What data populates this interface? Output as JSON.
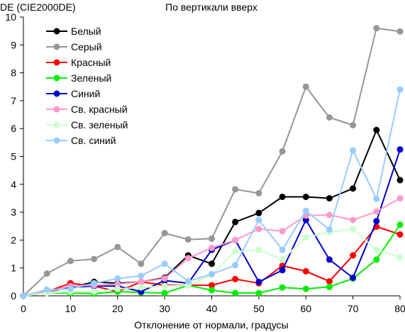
{
  "chart_data": {
    "type": "line",
    "title": "По вертикали вверх",
    "ylabel": "DE (CIE2000DE)",
    "xlabel": "Отклонение от нормали, градусы",
    "xlim": [
      0,
      80
    ],
    "ylim": [
      0,
      10
    ],
    "xticks": [
      0,
      10,
      20,
      30,
      40,
      50,
      60,
      70,
      80
    ],
    "yticks": [
      0,
      1,
      2,
      3,
      4,
      5,
      6,
      7,
      8,
      9,
      10
    ],
    "grid": false,
    "legend_position": "top-left",
    "x": [
      0,
      5,
      10,
      15,
      20,
      25,
      30,
      35,
      40,
      45,
      50,
      55,
      60,
      65,
      70,
      75,
      80
    ],
    "series": [
      {
        "name": "Белый",
        "color": "#000000",
        "values": [
          0,
          0.15,
          0.3,
          0.5,
          0.45,
          0.5,
          0.65,
          1.45,
          1.15,
          2.65,
          2.97,
          3.55,
          3.55,
          3.5,
          3.85,
          5.95,
          4.15
        ]
      },
      {
        "name": "Серый",
        "color": "#969696",
        "values": [
          0,
          0.8,
          1.25,
          1.32,
          1.75,
          1.15,
          2.25,
          2.02,
          2.05,
          3.82,
          3.68,
          5.18,
          7.5,
          6.4,
          6.12,
          9.6,
          9.48
        ]
      },
      {
        "name": "Красный",
        "color": "#ff0000",
        "values": [
          0,
          0.15,
          0.45,
          0.35,
          0.15,
          0.5,
          0.38,
          0.38,
          0.38,
          0.6,
          0.45,
          1.08,
          0.88,
          0.52,
          1.45,
          2.48,
          2.2
        ]
      },
      {
        "name": "Зеленый",
        "color": "#00ee00",
        "values": [
          0,
          0.1,
          0.1,
          0.08,
          0.15,
          0.12,
          0.1,
          0.38,
          0.2,
          0.1,
          0.1,
          0.3,
          0.25,
          0.32,
          0.62,
          1.3,
          2.55
        ]
      },
      {
        "name": "Синий",
        "color": "#0000cc",
        "values": [
          0,
          0.18,
          0.3,
          0.35,
          0.35,
          0.15,
          0.55,
          0.45,
          1.65,
          2.0,
          0.5,
          0.92,
          2.72,
          1.3,
          0.65,
          2.68,
          5.25
        ]
      },
      {
        "name": "Св. красный",
        "color": "#ff99cc",
        "values": [
          0,
          0.15,
          0.35,
          0.38,
          0.42,
          0.5,
          0.62,
          1.35,
          1.72,
          2.0,
          2.4,
          2.32,
          2.88,
          2.9,
          2.72,
          3.02,
          3.5
        ]
      },
      {
        "name": "Св. зеленый",
        "color": "#ccffcc",
        "values": [
          0,
          0.1,
          0.15,
          0.15,
          0.25,
          0.3,
          0.35,
          0.38,
          0.75,
          1.6,
          1.65,
          1.3,
          2.1,
          2.28,
          2.4,
          1.65,
          1.38
        ]
      },
      {
        "name": "Св. синий",
        "color": "#99ccff",
        "values": [
          0,
          0.22,
          0.25,
          0.45,
          0.62,
          0.72,
          1.15,
          0.52,
          0.78,
          1.1,
          2.72,
          1.65,
          3.05,
          2.38,
          5.22,
          3.48,
          7.4
        ]
      }
    ]
  }
}
